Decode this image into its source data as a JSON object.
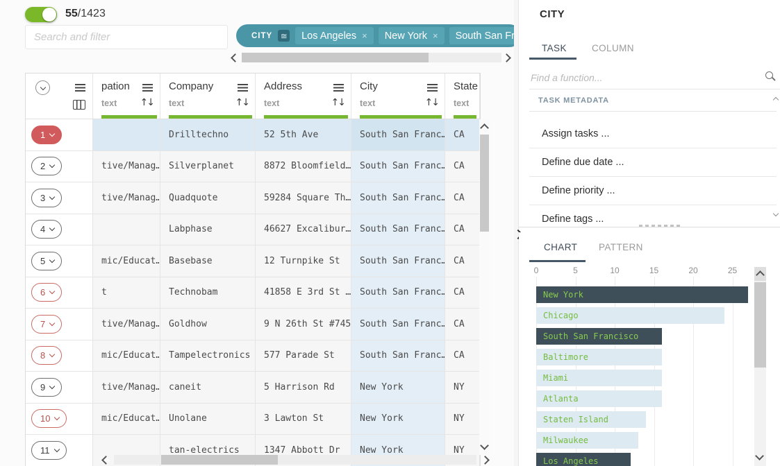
{
  "toolbar": {
    "filtered_rows": "55",
    "total_rows": "/1423",
    "search_placeholder": "Search and filter"
  },
  "filter_bar": {
    "column_label": "CITY",
    "operator_glyph": "≅",
    "chips": [
      {
        "label": "Los Angeles",
        "close_visible": true
      },
      {
        "label": "New York",
        "close_visible": true
      },
      {
        "label": "South San Fr",
        "close_visible": false
      }
    ]
  },
  "grid": {
    "columns": [
      {
        "label": "pation",
        "type": "text"
      },
      {
        "label": "Company",
        "type": "text"
      },
      {
        "label": "Address",
        "type": "text"
      },
      {
        "label": "City",
        "type": "text"
      },
      {
        "label": "State",
        "type": "text"
      }
    ],
    "rows": [
      {
        "num": "1",
        "pill": "red-filled",
        "highlighted": true,
        "occupation": "",
        "company": "Drilltechno",
        "address": "52 5th Ave",
        "city": "South San Franc…",
        "state": "CA"
      },
      {
        "num": "2",
        "pill": "dark",
        "highlighted": false,
        "occupation": "tive/Manag…",
        "company": "Silverplanet",
        "address": "8872 Bloomfield…",
        "city": "South San Franc…",
        "state": "CA"
      },
      {
        "num": "3",
        "pill": "dark",
        "highlighted": false,
        "occupation": "tive/Manag…",
        "company": "Quadquote",
        "address": "59284 Square Th…",
        "city": "South San Franc…",
        "state": "CA"
      },
      {
        "num": "4",
        "pill": "dark",
        "highlighted": false,
        "occupation": "",
        "company": "Labphase",
        "address": "46627 Excalibur…",
        "city": "South San Franc…",
        "state": "CA"
      },
      {
        "num": "5",
        "pill": "dark",
        "highlighted": false,
        "occupation": "mic/Educat…",
        "company": "Basebase",
        "address": "12 Turnpike St",
        "city": "South San Franc…",
        "state": "CA"
      },
      {
        "num": "6",
        "pill": "red-outline",
        "highlighted": false,
        "occupation": "t",
        "company": "Technobam",
        "address": "41858 E 3rd St …",
        "city": "South San Franc…",
        "state": "CA"
      },
      {
        "num": "7",
        "pill": "red-outline",
        "highlighted": false,
        "occupation": "tive/Manag…",
        "company": "Goldhow",
        "address": "9 N 26th St #745",
        "city": "South San Franc…",
        "state": "CA"
      },
      {
        "num": "8",
        "pill": "red-outline",
        "highlighted": false,
        "occupation": "mic/Educat…",
        "company": "Tampelectronics",
        "address": "577 Parade St",
        "city": "South San Franc…",
        "state": "CA"
      },
      {
        "num": "9",
        "pill": "dark",
        "highlighted": false,
        "occupation": "tive/Manag…",
        "company": "caneit",
        "address": "5 Harrison Rd",
        "city": "New York",
        "state": "NY"
      },
      {
        "num": "10",
        "pill": "red-outline",
        "highlighted": false,
        "occupation": "mic/Educat…",
        "company": "Unolane",
        "address": "3 Lawton St",
        "city": "New York",
        "state": "NY"
      },
      {
        "num": "11",
        "pill": "dark",
        "highlighted": false,
        "occupation": "",
        "company": "tan-electrics",
        "address": "1347 Abbott Dr",
        "city": "New York",
        "state": "NY"
      }
    ]
  },
  "task_panel": {
    "title": "CITY",
    "tabs": [
      "TASK",
      "COLUMN"
    ],
    "active_tab": "TASK",
    "function_search_placeholder": "Find a function...",
    "section_label": "TASK METADATA",
    "functions": [
      "Assign tasks ...",
      "Define due date ...",
      "Define priority ...",
      "Define tags ..."
    ]
  },
  "chart_panel": {
    "tabs": [
      "CHART",
      "PATTERN"
    ],
    "active_tab": "CHART"
  },
  "chart_data": {
    "type": "bar",
    "orientation": "horizontal",
    "categories": [
      "New York",
      "Chicago",
      "South San Francisco",
      "Baltimore",
      "Miami",
      "Atlanta",
      "Staten Island",
      "Milwaukee",
      "Los Angeles"
    ],
    "values": [
      27,
      24,
      16,
      16,
      16,
      16,
      14,
      13,
      12
    ],
    "selected_categories": [
      "New York",
      "South San Francisco",
      "Los Angeles"
    ],
    "x_ticks": [
      0,
      5,
      10,
      15,
      20,
      25
    ],
    "xlim": [
      0,
      27.5
    ],
    "grid": true,
    "legend": false
  },
  "colors": {
    "accent_green": "#76b831",
    "toggle_green": "#7ab829",
    "filter_teal": "#4a96a7",
    "chip_teal": "#57a4b5",
    "badge_teal": "#2f6b7a",
    "pill_red_fill": "#d15b5c",
    "pill_red_outline": "#c05a54",
    "row_highlight_blue": "#dbe9f5",
    "city_cell_blue": "#e4eef7",
    "bar_selected": "#3f4f59",
    "bar_unselected": "#ddeaf2",
    "bar_label_green": "#74bc3e",
    "tab_active_dark": "#3e4c59"
  }
}
